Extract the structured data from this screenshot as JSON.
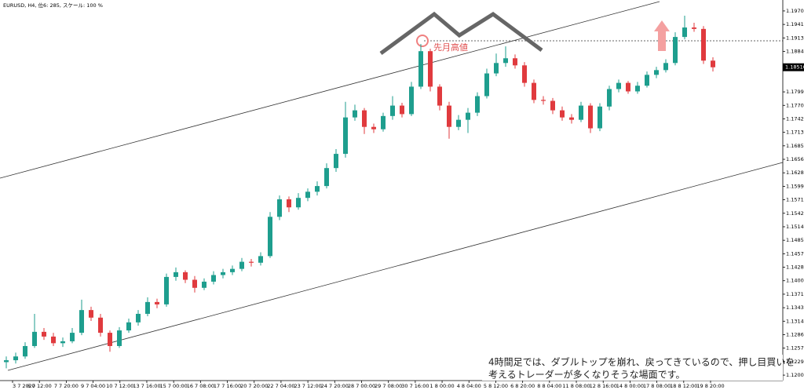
{
  "chart_data": {
    "type": "candlestick",
    "title": "EURUSD, H4, 位6: 285, スケール: 100 %",
    "annotation": "先月高値",
    "note": [
      "4時間足では、ダブルトップを崩れ、戻ってきているので、押し目買いを",
      "考えるトレーダーが多くなりそうな場面です。"
    ],
    "up_color": "#1e9e8e",
    "down_color": "#e03a3e",
    "ylim": [
      1.1189,
      1.19931
    ],
    "yticks": [
      {
        "value": 1.197,
        "label": "1.19700"
      },
      {
        "value": 1.19415,
        "label": "1.19415"
      },
      {
        "value": 1.1913,
        "label": "1.19130"
      },
      {
        "value": 1.18845,
        "label": "1.18845"
      },
      {
        "value": 1.1799,
        "label": "1.17990"
      },
      {
        "value": 1.17705,
        "label": "1.17705"
      },
      {
        "value": 1.1742,
        "label": "1.17420"
      },
      {
        "value": 1.17135,
        "label": "1.17135"
      },
      {
        "value": 1.1685,
        "label": "1.16850"
      },
      {
        "value": 1.16565,
        "label": "1.16565"
      },
      {
        "value": 1.1628,
        "label": "1.16280"
      },
      {
        "value": 1.15995,
        "label": "1.15995"
      },
      {
        "value": 1.1571,
        "label": "1.15710"
      },
      {
        "value": 1.15425,
        "label": "1.15425"
      },
      {
        "value": 1.1514,
        "label": "1.15140"
      },
      {
        "value": 1.14855,
        "label": "1.14855"
      },
      {
        "value": 1.1457,
        "label": "1.14570"
      },
      {
        "value": 1.14285,
        "label": "1.14285"
      },
      {
        "value": 1.14,
        "label": "1.14000"
      },
      {
        "value": 1.13715,
        "label": "1.13715"
      },
      {
        "value": 1.1343,
        "label": "1.13430"
      },
      {
        "value": 1.13145,
        "label": "1.13145"
      },
      {
        "value": 1.1286,
        "label": "1.12860"
      },
      {
        "value": 1.12575,
        "label": "1.12575"
      },
      {
        "value": 1.1229,
        "label": "1.12290"
      },
      {
        "value": 1.12005,
        "label": "1.12005"
      }
    ],
    "last_price": {
      "value": 1.1851,
      "label": "1.18510"
    },
    "x_labels": [
      "3 7 2020",
      "6 7 12:00",
      "7 7 20:00",
      "9 7 04:00",
      "10 7 12:00",
      "13 7 16:00",
      "15 7 00:00",
      "16 7 08:00",
      "17 7 16:00",
      "20 7 20:00",
      "22 7 04:00",
      "23 7 12:00",
      "24 7 20:00",
      "28 7 00:00",
      "29 7 08:00",
      "30 7 16:00",
      "1 8 00:00",
      "4 8 04:00",
      "5 8 12:00",
      "6 8 20:00",
      "8 8 04:00",
      "11 8 08:00",
      "12 8 16:00",
      "14 8 00:00",
      "17 8 08:00",
      "18 8 12:00",
      "19 8 20:00"
    ],
    "open": [
      1.1228,
      1.1232,
      1.124,
      1.1262,
      1.1292,
      1.1282,
      1.1268,
      1.1272,
      1.129,
      1.1338,
      1.1322,
      1.129,
      1.1262,
      1.1295,
      1.1312,
      1.133,
      1.1355,
      1.135,
      1.1408,
      1.1418,
      1.1402,
      1.1385,
      1.1398,
      1.1412,
      1.1418,
      1.1425,
      1.144,
      1.1438,
      1.1452,
      1.1535,
      1.1572,
      1.1555,
      1.1575,
      1.1588,
      1.16,
      1.1638,
      1.1668,
      1.1745,
      1.176,
      1.1725,
      1.172,
      1.1748,
      1.177,
      1.1752,
      1.181,
      1.1885,
      1.181,
      1.177,
      1.1725,
      1.174,
      1.1755,
      1.179,
      1.1838,
      1.186,
      1.187,
      1.1855,
      1.1818,
      1.1782,
      1.178,
      1.176,
      1.1745,
      1.174,
      1.177,
      1.1722,
      1.1768,
      1.1805,
      1.1818,
      1.18,
      1.1812,
      1.1835,
      1.1845,
      1.186,
      1.1915,
      1.1935,
      1.1932,
      1.1865
    ],
    "high": [
      1.124,
      1.1248,
      1.127,
      1.133,
      1.13,
      1.129,
      1.128,
      1.13,
      1.136,
      1.1345,
      1.133,
      1.1295,
      1.1302,
      1.132,
      1.1338,
      1.1365,
      1.1362,
      1.1415,
      1.1428,
      1.1422,
      1.141,
      1.1405,
      1.142,
      1.1425,
      1.1432,
      1.1448,
      1.1446,
      1.146,
      1.1545,
      1.158,
      1.1578,
      1.1585,
      1.1595,
      1.161,
      1.1648,
      1.1678,
      1.1778,
      1.1772,
      1.1765,
      1.1732,
      1.1755,
      1.179,
      1.1776,
      1.182,
      1.19,
      1.189,
      1.1815,
      1.1778,
      1.175,
      1.1765,
      1.1798,
      1.1848,
      1.188,
      1.1895,
      1.1878,
      1.1862,
      1.1825,
      1.179,
      1.1786,
      1.1768,
      1.1752,
      1.1778,
      1.1775,
      1.1775,
      1.1812,
      1.1825,
      1.1822,
      1.182,
      1.1842,
      1.1852,
      1.1868,
      1.1925,
      1.196,
      1.1945,
      1.1938,
      1.1872
    ],
    "low": [
      1.1215,
      1.1225,
      1.1235,
      1.1258,
      1.1275,
      1.1262,
      1.126,
      1.1268,
      1.1285,
      1.1315,
      1.1282,
      1.125,
      1.1258,
      1.129,
      1.1305,
      1.1325,
      1.1342,
      1.1345,
      1.14,
      1.1395,
      1.1375,
      1.138,
      1.1392,
      1.1405,
      1.1412,
      1.142,
      1.143,
      1.1432,
      1.1448,
      1.1528,
      1.1545,
      1.155,
      1.1568,
      1.158,
      1.1595,
      1.163,
      1.166,
      1.1738,
      1.171,
      1.1712,
      1.1715,
      1.174,
      1.1745,
      1.1748,
      1.1805,
      1.18,
      1.176,
      1.17,
      1.1718,
      1.1712,
      1.1748,
      1.1785,
      1.1832,
      1.1852,
      1.1848,
      1.181,
      1.1775,
      1.1772,
      1.1752,
      1.1738,
      1.1732,
      1.1735,
      1.1712,
      1.1716,
      1.176,
      1.1798,
      1.1795,
      1.1795,
      1.1808,
      1.1828,
      1.184,
      1.1855,
      1.191,
      1.1926,
      1.1858,
      1.1842
    ],
    "close": [
      1.1232,
      1.124,
      1.1262,
      1.1292,
      1.1282,
      1.1268,
      1.1272,
      1.129,
      1.1338,
      1.1322,
      1.129,
      1.1262,
      1.1295,
      1.1312,
      1.133,
      1.1355,
      1.135,
      1.1408,
      1.1418,
      1.1402,
      1.1385,
      1.1398,
      1.1412,
      1.1418,
      1.1425,
      1.144,
      1.1438,
      1.1452,
      1.1535,
      1.1572,
      1.1555,
      1.1575,
      1.1588,
      1.16,
      1.1638,
      1.1668,
      1.1745,
      1.176,
      1.1725,
      1.172,
      1.1748,
      1.177,
      1.1752,
      1.181,
      1.1885,
      1.181,
      1.177,
      1.1725,
      1.174,
      1.1755,
      1.179,
      1.1838,
      1.186,
      1.187,
      1.1855,
      1.1818,
      1.1782,
      1.178,
      1.176,
      1.1745,
      1.174,
      1.177,
      1.1722,
      1.1768,
      1.1805,
      1.1818,
      1.18,
      1.1812,
      1.1835,
      1.1845,
      1.186,
      1.1915,
      1.1935,
      1.1932,
      1.1865,
      1.1851
    ]
  }
}
